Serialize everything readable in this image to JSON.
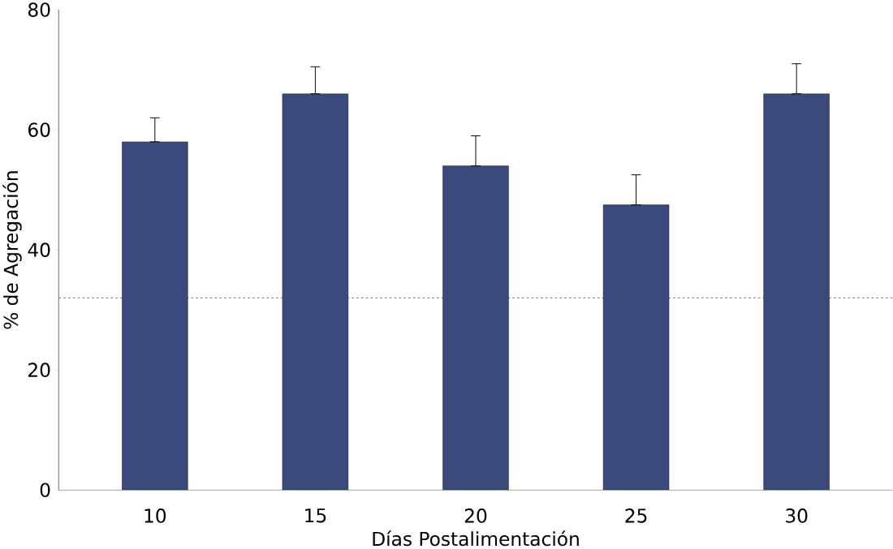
{
  "chart_data": {
    "type": "bar",
    "xlabel": "Días Postalimentación",
    "ylabel": "% de Agregación",
    "categories": [
      "10",
      "15",
      "20",
      "25",
      "30"
    ],
    "values": [
      58,
      66,
      54,
      47.5,
      66
    ],
    "errors": [
      [
        58,
        62
      ],
      [
        66,
        70.5
      ],
      [
        54,
        59
      ],
      [
        47.5,
        52.5
      ],
      [
        66,
        71
      ]
    ],
    "color": "#3b4a7c",
    "ylim": [
      0,
      80
    ],
    "yticks": [
      0,
      20,
      40,
      60,
      80
    ],
    "ref_lines": [
      {
        "axis": "y",
        "value": 32,
        "color": "#555555",
        "line_style": "dashed"
      }
    ]
  }
}
